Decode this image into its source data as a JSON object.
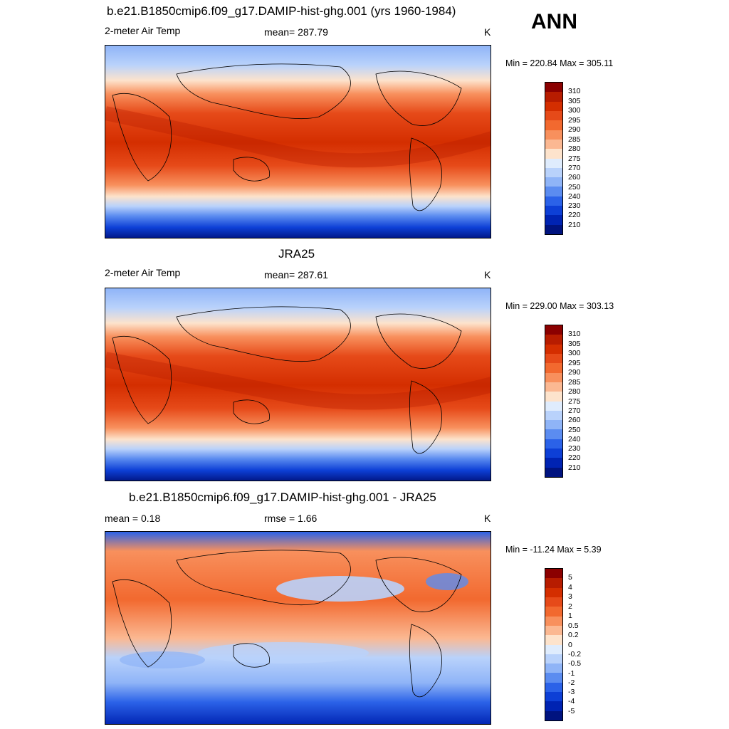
{
  "season": "ANN",
  "panels": [
    {
      "title": "b.e21.B1850cmip6.f09_g17.DAMIP-hist-ghg.001 (yrs 1960-1984)",
      "left_label": "2-meter Air Temp",
      "center_label": "mean= 287.79",
      "unit": "K",
      "minmax": "Min = 220.84 Max = 305.11"
    },
    {
      "title": "JRA25",
      "left_label": "2-meter Air Temp",
      "center_label": "mean= 287.61",
      "unit": "K",
      "minmax": "Min = 229.00 Max = 303.13"
    },
    {
      "title": "b.e21.B1850cmip6.f09_g17.DAMIP-hist-ghg.001 - JRA25",
      "left_label": "mean =   0.18",
      "center_label": "rmse =   1.66",
      "unit": "K",
      "minmax": "Min = -11.24 Max =   5.39"
    }
  ],
  "colorbars": {
    "abs_labels": [
      "310",
      "305",
      "300",
      "295",
      "290",
      "285",
      "280",
      "275",
      "270",
      "260",
      "250",
      "240",
      "230",
      "220",
      "210"
    ],
    "abs_colors": [
      "#8b0000",
      "#b71c00",
      "#d42e00",
      "#e64a19",
      "#f2692f",
      "#f8905d",
      "#fbb892",
      "#fde3cc",
      "#dfecfd",
      "#b9d2fb",
      "#8fb4f7",
      "#5b8cf0",
      "#2b62e8",
      "#0d3fd6",
      "#0023b2",
      "#00137f"
    ],
    "diff_labels": [
      "5",
      "4",
      "3",
      "2",
      "1",
      "0.5",
      "0.2",
      "0",
      "-0.2",
      "-0.5",
      "-1",
      "-2",
      "-3",
      "-4",
      "-5"
    ],
    "diff_colors": [
      "#8b0000",
      "#b71c00",
      "#d42e00",
      "#e64a19",
      "#f2692f",
      "#f8905d",
      "#fbb892",
      "#fde3cc",
      "#dfecfd",
      "#b9d2fb",
      "#8fb4f7",
      "#5b8cf0",
      "#2b62e8",
      "#0d3fd6",
      "#0023b2",
      "#00137f"
    ]
  }
}
